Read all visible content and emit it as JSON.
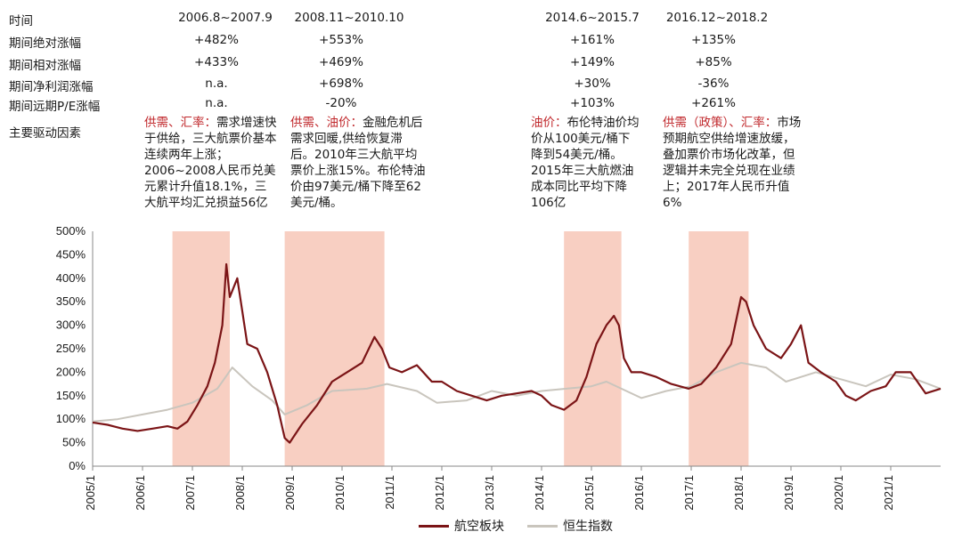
{
  "table": {
    "row_labels": [
      "时间",
      "期间绝对涨幅",
      "期间相对涨幅",
      "期间净利润涨幅",
      "期间远期P/E涨幅",
      "主要驱动因素"
    ],
    "periods": [
      {
        "time": "2006.8~2007.9",
        "abs": "+482%",
        "rel": "+433%",
        "profit": "n.a.",
        "pe": "n.a.",
        "driver_kw": "供需、汇率：",
        "driver_text": "需求增速快于供给，三大航票价基本连续两年上涨；2006~2008人民币兑美元累计升值18.1%，三大航平均汇兑损益56亿"
      },
      {
        "time": "2008.11~2010.10",
        "abs": "+553%",
        "rel": "+469%",
        "profit": "+698%",
        "pe": "-20%",
        "driver_kw": "供需、油价：",
        "driver_text": "金融危机后需求回暖,供给恢复滞后。2010年三大航平均票价上涨15%。布伦特油价由97美元/桶下降至62美元/桶。"
      },
      {
        "time": "2014.6~2015.7",
        "abs": "+161%",
        "rel": "+149%",
        "profit": "+30%",
        "pe": "+103%",
        "driver_kw": "油价：",
        "driver_text": "布伦特油价均价从100美元/桶下降到54美元/桶。2015年三大航燃油成本同比平均下降106亿"
      },
      {
        "time": "2016.12~2018.2",
        "abs": "+135%",
        "rel": "+85%",
        "profit": "-36%",
        "pe": "+261%",
        "driver_kw": "供需（政策）、汇率：",
        "driver_text": "市场预期航空供给增速放缓，叠加票价市场化改革，但逻辑并未完全兑现在业绩上；2017年人民币升值6%"
      }
    ]
  },
  "colors": {
    "airline": "#7b1416",
    "hsi": "#c9c5bd",
    "highlight": "#f8cfc2"
  },
  "chart_data": {
    "type": "line",
    "x_axis": "date (years)",
    "xlim": [
      2005.0,
      2022.0
    ],
    "ylim": [
      0,
      500
    ],
    "ytick_labels": [
      "0%",
      "50%",
      "100%",
      "150%",
      "200%",
      "250%",
      "300%",
      "350%",
      "400%",
      "450%",
      "500%"
    ],
    "yticks": [
      0,
      50,
      100,
      150,
      200,
      250,
      300,
      350,
      400,
      450,
      500
    ],
    "xtick_labels": [
      "2005/1",
      "2006/1",
      "2007/1",
      "2008/1",
      "2009/1",
      "2010/1",
      "2011/1",
      "2012/1",
      "2013/1",
      "2014/1",
      "2015/1",
      "2016/1",
      "2017/1",
      "2018/1",
      "2019/1",
      "2020/1",
      "2021/1"
    ],
    "xticks": [
      2005,
      2006,
      2007,
      2008,
      2009,
      2010,
      2011,
      2012,
      2013,
      2014,
      2015,
      2016,
      2017,
      2018,
      2019,
      2020,
      2021
    ],
    "shaded_periods": [
      [
        2006.6,
        2007.75
      ],
      [
        2008.85,
        2010.85
      ],
      [
        2014.45,
        2015.6
      ],
      [
        2016.95,
        2018.15
      ]
    ],
    "series": [
      {
        "name": "航空板块",
        "x": [
          2005.0,
          2005.3,
          2005.6,
          2005.9,
          2006.2,
          2006.5,
          2006.7,
          2006.9,
          2007.1,
          2007.3,
          2007.45,
          2007.6,
          2007.68,
          2007.75,
          2007.9,
          2008.1,
          2008.3,
          2008.5,
          2008.7,
          2008.85,
          2008.95,
          2009.2,
          2009.5,
          2009.8,
          2010.1,
          2010.4,
          2010.65,
          2010.8,
          2010.95,
          2011.2,
          2011.5,
          2011.8,
          2012.0,
          2012.3,
          2012.6,
          2012.9,
          2013.2,
          2013.5,
          2013.8,
          2014.0,
          2014.2,
          2014.45,
          2014.7,
          2014.9,
          2015.1,
          2015.3,
          2015.45,
          2015.55,
          2015.65,
          2015.8,
          2016.0,
          2016.3,
          2016.6,
          2016.95,
          2017.2,
          2017.5,
          2017.8,
          2018.0,
          2018.1,
          2018.25,
          2018.5,
          2018.8,
          2019.0,
          2019.2,
          2019.35,
          2019.6,
          2019.9,
          2020.1,
          2020.3,
          2020.6,
          2020.9,
          2021.1,
          2021.4,
          2021.7,
          2022.0
        ],
        "values": [
          93,
          88,
          80,
          75,
          80,
          85,
          80,
          95,
          130,
          170,
          220,
          300,
          430,
          360,
          400,
          260,
          250,
          200,
          130,
          60,
          50,
          90,
          130,
          180,
          200,
          220,
          275,
          250,
          210,
          200,
          215,
          180,
          180,
          160,
          150,
          140,
          150,
          155,
          160,
          150,
          130,
          120,
          140,
          190,
          260,
          300,
          320,
          300,
          230,
          200,
          200,
          190,
          175,
          165,
          175,
          210,
          260,
          360,
          350,
          300,
          250,
          230,
          260,
          300,
          220,
          200,
          180,
          150,
          140,
          160,
          170,
          200,
          200,
          155,
          165
        ]
      },
      {
        "name": "恒生指数",
        "x": [
          2005.0,
          2005.5,
          2006.0,
          2006.5,
          2007.0,
          2007.5,
          2007.8,
          2008.2,
          2008.6,
          2008.85,
          2009.3,
          2009.8,
          2010.5,
          2010.9,
          2011.5,
          2011.9,
          2012.5,
          2013.0,
          2013.5,
          2014.0,
          2014.5,
          2015.0,
          2015.3,
          2015.6,
          2016.0,
          2016.5,
          2017.0,
          2017.5,
          2018.0,
          2018.5,
          2018.9,
          2019.5,
          2020.0,
          2020.5,
          2021.0,
          2021.5,
          2022.0
        ],
        "values": [
          95,
          100,
          110,
          120,
          135,
          165,
          210,
          170,
          140,
          110,
          130,
          160,
          165,
          175,
          160,
          135,
          140,
          160,
          150,
          160,
          165,
          170,
          180,
          165,
          145,
          160,
          170,
          200,
          220,
          210,
          180,
          200,
          185,
          170,
          195,
          185,
          165
        ]
      }
    ]
  },
  "legend": {
    "airline": "航空板块",
    "hsi": "恒生指数"
  }
}
